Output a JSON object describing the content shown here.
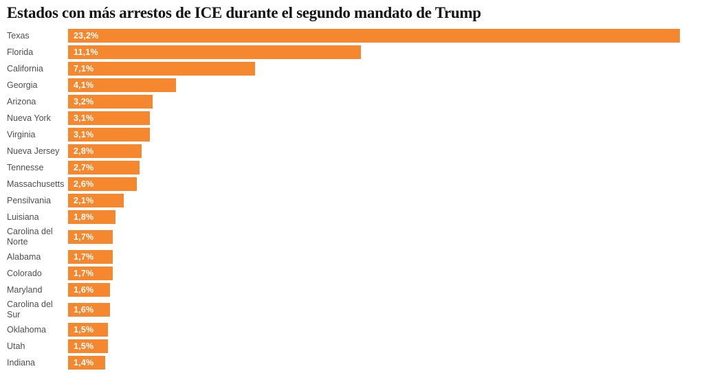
{
  "header": {
    "title": "Estados con más arrestos de ICE durante el segundo mandato de Trump"
  },
  "colors": {
    "bar": "#F5882F",
    "category_label": "#4E4E50",
    "value_label": "#FFFFFF",
    "title": "#141414",
    "background": "#FFFFFF"
  },
  "chart_data": {
    "type": "bar",
    "orientation": "horizontal",
    "title": "Estados con más arrestos de ICE durante el segundo mandato de Trump",
    "xlabel": "",
    "ylabel": "",
    "unit": "%",
    "xlim": [
      0,
      23.2
    ],
    "grid": false,
    "legend": "none",
    "bar_color": "#F5882F",
    "value_labels_position": "inside-start",
    "categories": [
      "Texas",
      "Florida",
      "California",
      "Georgia",
      "Arizona",
      "Nueva York",
      "Virginia",
      "Nueva Jersey",
      "Tennesse",
      "Massachusetts",
      "Pensilvania",
      "Luisiana",
      "Carolina del Norte",
      "Alabama",
      "Colorado",
      "Maryland",
      "Carolina del Sur",
      "Oklahoma",
      "Utah",
      "Indiana"
    ],
    "values": [
      23.2,
      11.1,
      7.1,
      4.1,
      3.2,
      3.1,
      3.1,
      2.8,
      2.7,
      2.6,
      2.1,
      1.8,
      1.7,
      1.7,
      1.7,
      1.6,
      1.6,
      1.5,
      1.5,
      1.4
    ],
    "value_labels": [
      "23,2%",
      "11,1%",
      "7,1%",
      "4,1%",
      "3,2%",
      "3,1%",
      "3,1%",
      "2,8%",
      "2,7%",
      "2,6%",
      "2,1%",
      "1,8%",
      "1,7%",
      "1,7%",
      "1,7%",
      "1,6%",
      "1,6%",
      "1,5%",
      "1,5%",
      "1,4%"
    ]
  }
}
